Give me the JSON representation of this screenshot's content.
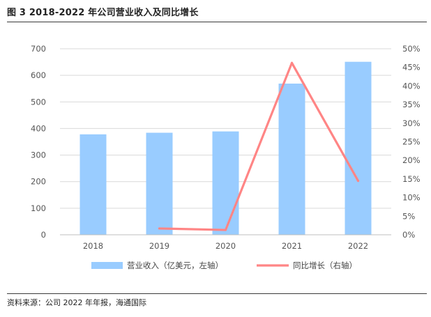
{
  "title": "图 3 2018-2022 年公司营业收入及同比增长",
  "source": "资料来源：公司 2022 年年报，海通国际",
  "chart_data": {
    "type": "bar",
    "categories": [
      "2018",
      "2019",
      "2020",
      "2021",
      "2022"
    ],
    "series": [
      {
        "name": "营业收入（亿美元，左轴）",
        "type": "bar",
        "axis": "left",
        "values": [
          378,
          384,
          389,
          569,
          651
        ],
        "color": "#99ccff"
      },
      {
        "name": "同比增长（右轴）",
        "type": "line",
        "axis": "right",
        "values": [
          null,
          1.7,
          1.3,
          46.2,
          14.5
        ],
        "color": "#ff8585"
      }
    ],
    "yleft": {
      "min": 0,
      "max": 700,
      "step": 100,
      "ticks": [
        "0",
        "100",
        "200",
        "300",
        "400",
        "500",
        "600",
        "700"
      ]
    },
    "yright": {
      "min": 0,
      "max": 50,
      "step": 5,
      "ticks": [
        "0%",
        "5%",
        "10%",
        "15%",
        "20%",
        "25%",
        "30%",
        "35%",
        "40%",
        "45%",
        "50%"
      ]
    },
    "grid": true,
    "legend": "bottom"
  }
}
